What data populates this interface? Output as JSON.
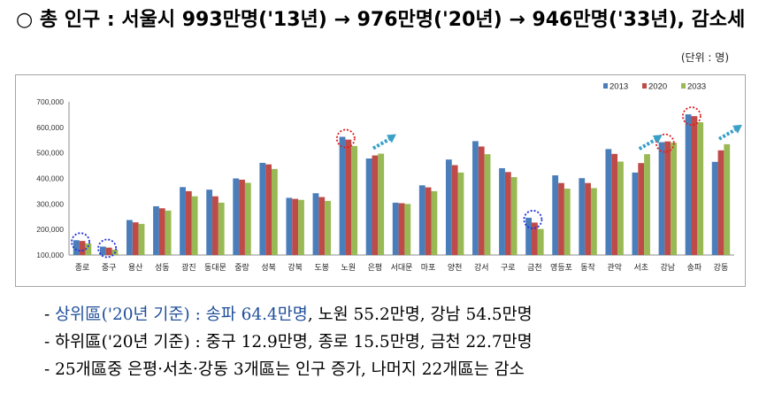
{
  "headline": "○ 총 인구 : 서울시 993만명('13년) → 976만명('20년) → 946만명('33년), 감소세",
  "unit": "(단위 : 명)",
  "colors": {
    "2013": "#4a7ebb",
    "2020": "#be4b48",
    "2033": "#98b954"
  },
  "chart_data": {
    "type": "bar",
    "categories": [
      "종로",
      "중구",
      "용산",
      "성동",
      "광진",
      "동대문",
      "중랑",
      "성북",
      "강북",
      "도봉",
      "노원",
      "은평",
      "서대문",
      "마포",
      "양천",
      "강서",
      "구로",
      "금천",
      "영등포",
      "동작",
      "관악",
      "서초",
      "강남",
      "송파",
      "강동"
    ],
    "series": [
      {
        "name": "2013",
        "values": [
          158000,
          133000,
          237000,
          291000,
          366000,
          356000,
          400000,
          461000,
          324000,
          342000,
          563000,
          478000,
          305000,
          373000,
          474000,
          546000,
          440000,
          246000,
          412000,
          401000,
          515000,
          423000,
          542000,
          651000,
          465000
        ]
      },
      {
        "name": "2020",
        "values": [
          155000,
          129000,
          228000,
          283000,
          350000,
          330000,
          395000,
          455000,
          320000,
          327000,
          552000,
          490000,
          303000,
          365000,
          452000,
          525000,
          425000,
          227000,
          382000,
          382000,
          496000,
          460000,
          545000,
          644000,
          510000
        ]
      },
      {
        "name": "2033",
        "values": [
          145000,
          121000,
          222000,
          274000,
          330000,
          305000,
          383000,
          437000,
          316000,
          312000,
          527000,
          497000,
          300000,
          350000,
          423000,
          495000,
          405000,
          202000,
          360000,
          362000,
          466000,
          495000,
          540000,
          620000,
          534000
        ]
      }
    ],
    "ylim": [
      100000,
      700000
    ],
    "yticks": [
      "100,000",
      "200,000",
      "300,000",
      "400,000",
      "500,000",
      "600,000",
      "700,000"
    ],
    "legend_position": "top-right"
  },
  "bullets": {
    "b1_prefix": "- ",
    "b1_highlight": "상위區('20년 기준) : 송파 64.4만명",
    "b1_rest": ", 노원 55.2만명, 강남 54.5만명",
    "b2": "- 하위區('20년 기준) : 중구 12.9만명, 종로 15.5만명, 금천 22.7만명",
    "b3": "- 25개區중 은평·서초·강동 3개區는 인구 증가, 나머지 22개區는 감소"
  }
}
